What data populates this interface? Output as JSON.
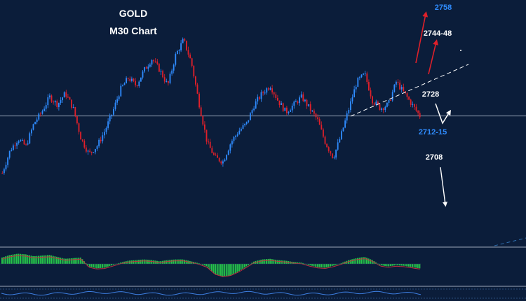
{
  "chart_data": {
    "type": "candlestick",
    "instrument": "GOLD",
    "timeframe": "M30 Chart",
    "title_line1": "GOLD",
    "title_line2": "M30 Chart",
    "y_range": [
      2700,
      2762
    ],
    "current_price": 2733,
    "price_levels": [
      {
        "label": "2758",
        "value": 2758,
        "color": "#2f8cff"
      },
      {
        "label": "2744-48",
        "value": 2746,
        "color": "#ffffff"
      },
      {
        "label": "2728",
        "value": 2728,
        "color": "#ffffff"
      },
      {
        "label": "2712-15",
        "value": 2713.5,
        "color": "#2f8cff"
      },
      {
        "label": "2708",
        "value": 2708,
        "color": "#ffffff"
      }
    ],
    "trendline": {
      "from": [
        0,
        2720
      ],
      "to": [
        1,
        2736
      ],
      "style": "dashed"
    },
    "arrows": [
      {
        "direction": "up",
        "target": "2758",
        "color": "#e0202a"
      },
      {
        "direction": "up",
        "target": "2744-48",
        "color": "#e0202a"
      },
      {
        "direction": "down-then-up",
        "target": "2712-15",
        "color": "#ffffff"
      },
      {
        "direction": "down",
        "target": "2708",
        "color": "#ffffff"
      }
    ],
    "close_path": [
      2718,
      2724,
      2727,
      2725,
      2731,
      2734,
      2738,
      2736,
      2739,
      2735,
      2727,
      2723,
      2725,
      2729,
      2734,
      2740,
      2743,
      2741,
      2745,
      2748,
      2745,
      2741,
      2749,
      2753,
      2747,
      2736,
      2726,
      2722,
      2721,
      2726,
      2729,
      2731,
      2736,
      2739,
      2741,
      2737,
      2734,
      2736,
      2738,
      2735,
      2732,
      2726,
      2722,
      2728,
      2735,
      2742,
      2744,
      2737,
      2735,
      2736,
      2742,
      2739,
      2736,
      2733
    ],
    "colors": {
      "bull": "#2f8cff",
      "bear": "#e0202a",
      "background": "#0b1d3a",
      "oscillator": "#25c24a"
    },
    "oscillator": [
      0.5,
      0.7,
      0.8,
      0.75,
      0.6,
      0.65,
      0.7,
      0.55,
      0.4,
      0.45,
      0.5,
      -0.2,
      -0.35,
      -0.3,
      -0.1,
      0.1,
      0.25,
      0.3,
      0.35,
      0.3,
      0.2,
      0.3,
      0.35,
      0.35,
      0.2,
      0.05,
      -0.2,
      -0.8,
      -1.0,
      -0.9,
      -0.6,
      -0.2,
      0.2,
      0.35,
      0.4,
      0.3,
      0.25,
      0.15,
      0.1,
      -0.1,
      -0.25,
      -0.3,
      -0.15,
      0.05,
      0.3,
      0.45,
      0.55,
      0.3,
      -0.1,
      -0.2,
      -0.1,
      -0.15,
      -0.25,
      -0.35
    ]
  }
}
